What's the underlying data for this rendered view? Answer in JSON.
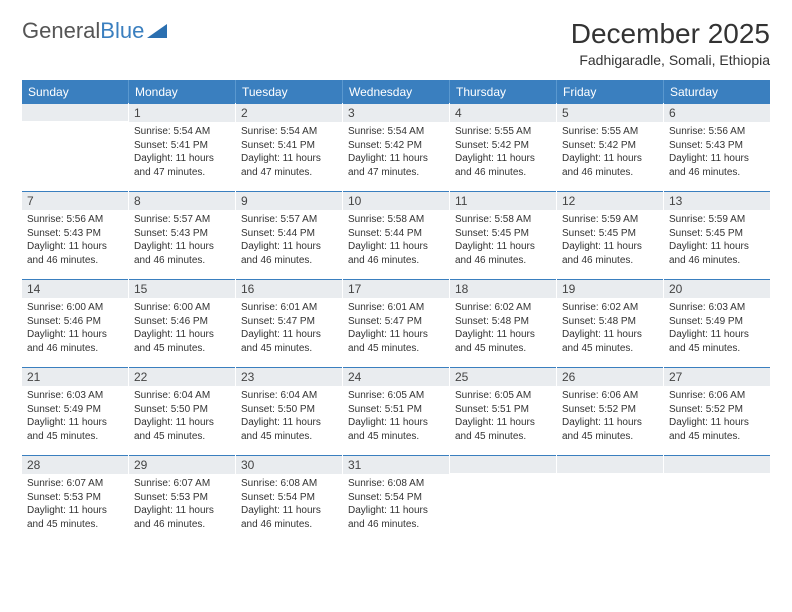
{
  "logo": {
    "text1": "General",
    "text2": "Blue"
  },
  "title": "December 2025",
  "location": "Fadhigaradle, Somali, Ethiopia",
  "colors": {
    "header_bg": "#3a7fbf",
    "day_num_bg": "#e9ecef",
    "day_border_top": "#3a7fbf"
  },
  "days_of_week": [
    "Sunday",
    "Monday",
    "Tuesday",
    "Wednesday",
    "Thursday",
    "Friday",
    "Saturday"
  ],
  "weeks": [
    [
      {
        "n": "",
        "sunrise": "",
        "sunset": "",
        "daylight": ""
      },
      {
        "n": "1",
        "sunrise": "Sunrise: 5:54 AM",
        "sunset": "Sunset: 5:41 PM",
        "daylight": "Daylight: 11 hours and 47 minutes."
      },
      {
        "n": "2",
        "sunrise": "Sunrise: 5:54 AM",
        "sunset": "Sunset: 5:41 PM",
        "daylight": "Daylight: 11 hours and 47 minutes."
      },
      {
        "n": "3",
        "sunrise": "Sunrise: 5:54 AM",
        "sunset": "Sunset: 5:42 PM",
        "daylight": "Daylight: 11 hours and 47 minutes."
      },
      {
        "n": "4",
        "sunrise": "Sunrise: 5:55 AM",
        "sunset": "Sunset: 5:42 PM",
        "daylight": "Daylight: 11 hours and 46 minutes."
      },
      {
        "n": "5",
        "sunrise": "Sunrise: 5:55 AM",
        "sunset": "Sunset: 5:42 PM",
        "daylight": "Daylight: 11 hours and 46 minutes."
      },
      {
        "n": "6",
        "sunrise": "Sunrise: 5:56 AM",
        "sunset": "Sunset: 5:43 PM",
        "daylight": "Daylight: 11 hours and 46 minutes."
      }
    ],
    [
      {
        "n": "7",
        "sunrise": "Sunrise: 5:56 AM",
        "sunset": "Sunset: 5:43 PM",
        "daylight": "Daylight: 11 hours and 46 minutes."
      },
      {
        "n": "8",
        "sunrise": "Sunrise: 5:57 AM",
        "sunset": "Sunset: 5:43 PM",
        "daylight": "Daylight: 11 hours and 46 minutes."
      },
      {
        "n": "9",
        "sunrise": "Sunrise: 5:57 AM",
        "sunset": "Sunset: 5:44 PM",
        "daylight": "Daylight: 11 hours and 46 minutes."
      },
      {
        "n": "10",
        "sunrise": "Sunrise: 5:58 AM",
        "sunset": "Sunset: 5:44 PM",
        "daylight": "Daylight: 11 hours and 46 minutes."
      },
      {
        "n": "11",
        "sunrise": "Sunrise: 5:58 AM",
        "sunset": "Sunset: 5:45 PM",
        "daylight": "Daylight: 11 hours and 46 minutes."
      },
      {
        "n": "12",
        "sunrise": "Sunrise: 5:59 AM",
        "sunset": "Sunset: 5:45 PM",
        "daylight": "Daylight: 11 hours and 46 minutes."
      },
      {
        "n": "13",
        "sunrise": "Sunrise: 5:59 AM",
        "sunset": "Sunset: 5:45 PM",
        "daylight": "Daylight: 11 hours and 46 minutes."
      }
    ],
    [
      {
        "n": "14",
        "sunrise": "Sunrise: 6:00 AM",
        "sunset": "Sunset: 5:46 PM",
        "daylight": "Daylight: 11 hours and 46 minutes."
      },
      {
        "n": "15",
        "sunrise": "Sunrise: 6:00 AM",
        "sunset": "Sunset: 5:46 PM",
        "daylight": "Daylight: 11 hours and 45 minutes."
      },
      {
        "n": "16",
        "sunrise": "Sunrise: 6:01 AM",
        "sunset": "Sunset: 5:47 PM",
        "daylight": "Daylight: 11 hours and 45 minutes."
      },
      {
        "n": "17",
        "sunrise": "Sunrise: 6:01 AM",
        "sunset": "Sunset: 5:47 PM",
        "daylight": "Daylight: 11 hours and 45 minutes."
      },
      {
        "n": "18",
        "sunrise": "Sunrise: 6:02 AM",
        "sunset": "Sunset: 5:48 PM",
        "daylight": "Daylight: 11 hours and 45 minutes."
      },
      {
        "n": "19",
        "sunrise": "Sunrise: 6:02 AM",
        "sunset": "Sunset: 5:48 PM",
        "daylight": "Daylight: 11 hours and 45 minutes."
      },
      {
        "n": "20",
        "sunrise": "Sunrise: 6:03 AM",
        "sunset": "Sunset: 5:49 PM",
        "daylight": "Daylight: 11 hours and 45 minutes."
      }
    ],
    [
      {
        "n": "21",
        "sunrise": "Sunrise: 6:03 AM",
        "sunset": "Sunset: 5:49 PM",
        "daylight": "Daylight: 11 hours and 45 minutes."
      },
      {
        "n": "22",
        "sunrise": "Sunrise: 6:04 AM",
        "sunset": "Sunset: 5:50 PM",
        "daylight": "Daylight: 11 hours and 45 minutes."
      },
      {
        "n": "23",
        "sunrise": "Sunrise: 6:04 AM",
        "sunset": "Sunset: 5:50 PM",
        "daylight": "Daylight: 11 hours and 45 minutes."
      },
      {
        "n": "24",
        "sunrise": "Sunrise: 6:05 AM",
        "sunset": "Sunset: 5:51 PM",
        "daylight": "Daylight: 11 hours and 45 minutes."
      },
      {
        "n": "25",
        "sunrise": "Sunrise: 6:05 AM",
        "sunset": "Sunset: 5:51 PM",
        "daylight": "Daylight: 11 hours and 45 minutes."
      },
      {
        "n": "26",
        "sunrise": "Sunrise: 6:06 AM",
        "sunset": "Sunset: 5:52 PM",
        "daylight": "Daylight: 11 hours and 45 minutes."
      },
      {
        "n": "27",
        "sunrise": "Sunrise: 6:06 AM",
        "sunset": "Sunset: 5:52 PM",
        "daylight": "Daylight: 11 hours and 45 minutes."
      }
    ],
    [
      {
        "n": "28",
        "sunrise": "Sunrise: 6:07 AM",
        "sunset": "Sunset: 5:53 PM",
        "daylight": "Daylight: 11 hours and 45 minutes."
      },
      {
        "n": "29",
        "sunrise": "Sunrise: 6:07 AM",
        "sunset": "Sunset: 5:53 PM",
        "daylight": "Daylight: 11 hours and 46 minutes."
      },
      {
        "n": "30",
        "sunrise": "Sunrise: 6:08 AM",
        "sunset": "Sunset: 5:54 PM",
        "daylight": "Daylight: 11 hours and 46 minutes."
      },
      {
        "n": "31",
        "sunrise": "Sunrise: 6:08 AM",
        "sunset": "Sunset: 5:54 PM",
        "daylight": "Daylight: 11 hours and 46 minutes."
      },
      {
        "n": "",
        "sunrise": "",
        "sunset": "",
        "daylight": ""
      },
      {
        "n": "",
        "sunrise": "",
        "sunset": "",
        "daylight": ""
      },
      {
        "n": "",
        "sunrise": "",
        "sunset": "",
        "daylight": ""
      }
    ]
  ]
}
